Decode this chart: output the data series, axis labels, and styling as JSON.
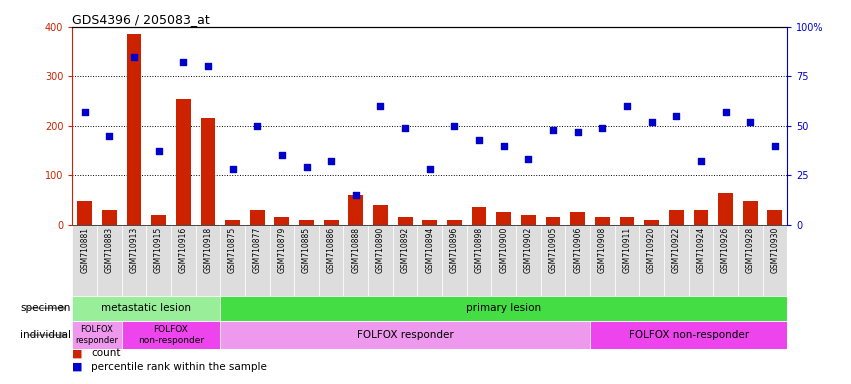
{
  "title": "GDS4396 / 205083_at",
  "samples": [
    "GSM710881",
    "GSM710883",
    "GSM710913",
    "GSM710915",
    "GSM710916",
    "GSM710918",
    "GSM710875",
    "GSM710877",
    "GSM710879",
    "GSM710885",
    "GSM710886",
    "GSM710888",
    "GSM710890",
    "GSM710892",
    "GSM710894",
    "GSM710896",
    "GSM710898",
    "GSM710900",
    "GSM710902",
    "GSM710905",
    "GSM710906",
    "GSM710908",
    "GSM710911",
    "GSM710920",
    "GSM710922",
    "GSM710924",
    "GSM710926",
    "GSM710928",
    "GSM710930"
  ],
  "counts": [
    47,
    30,
    385,
    20,
    255,
    215,
    10,
    30,
    15,
    10,
    10,
    60,
    40,
    15,
    10,
    10,
    35,
    25,
    20,
    15,
    25,
    15,
    15,
    10,
    30,
    30,
    65,
    47,
    30
  ],
  "percentile": [
    57,
    45,
    85,
    37,
    82,
    80,
    28,
    50,
    35,
    29,
    32,
    15,
    60,
    49,
    28,
    50,
    43,
    40,
    33,
    48,
    47,
    49,
    60,
    52,
    55,
    32,
    57,
    52,
    40
  ],
  "bar_color": "#cc2200",
  "dot_color": "#0000cc",
  "background_color": "#ffffff",
  "left_axis_color": "#cc2200",
  "right_axis_color": "#0000cc",
  "yticks_left": [
    0,
    100,
    200,
    300,
    400
  ],
  "yticks_right": [
    0,
    25,
    50,
    75,
    100
  ],
  "ytick_labels_right": [
    "0",
    "25",
    "50",
    "75",
    "100%"
  ],
  "specimen_groups": [
    {
      "label": "metastatic lesion",
      "start": 0,
      "end": 5,
      "color": "#99ee99"
    },
    {
      "label": "primary lesion",
      "start": 6,
      "end": 28,
      "color": "#44dd44"
    }
  ],
  "individual_groups": [
    {
      "label": "FOLFOX\nresponder",
      "start": 0,
      "end": 1,
      "color": "#ee99ee",
      "fontsize": 6.0
    },
    {
      "label": "FOLFOX\nnon-responder",
      "start": 2,
      "end": 5,
      "color": "#ee44ee",
      "fontsize": 6.5
    },
    {
      "label": "FOLFOX responder",
      "start": 6,
      "end": 20,
      "color": "#ee99ee",
      "fontsize": 7.5
    },
    {
      "label": "FOLFOX non-responder",
      "start": 21,
      "end": 28,
      "color": "#ee44ee",
      "fontsize": 7.5
    }
  ],
  "specimen_label": "specimen",
  "individual_label": "individual",
  "legend_count": "count",
  "legend_percentile": "percentile rank within the sample",
  "tick_bg_color": "#dddddd"
}
